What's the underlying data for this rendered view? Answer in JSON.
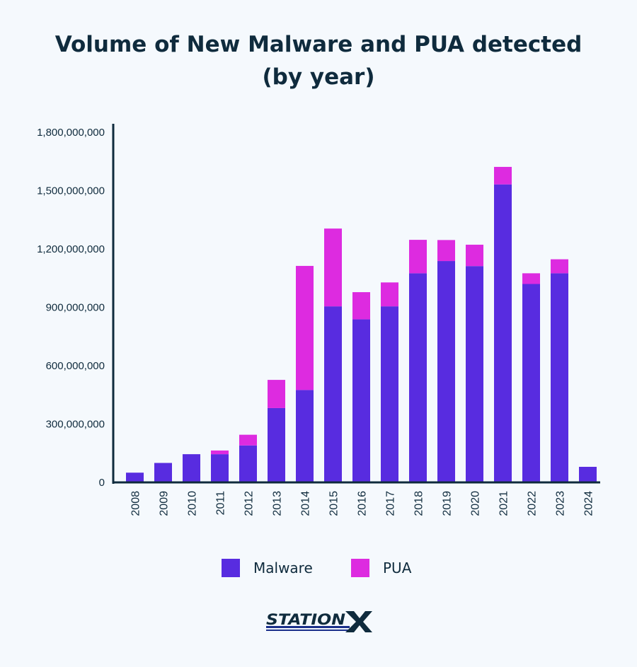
{
  "title_line1": "Volume of New Malware and PUA detected",
  "title_line2": "(by year)",
  "brand": "STATIONX",
  "colors": {
    "malware": "#582ce0",
    "pua": "#dd2be0",
    "axis": "#0f2b3d",
    "background": "#f5f9fd"
  },
  "chart_data": {
    "type": "bar",
    "stacked": true,
    "categories": [
      "2008",
      "2009",
      "2010",
      "2011",
      "2012",
      "2013",
      "2014",
      "2015",
      "2016",
      "2017",
      "2018",
      "2019",
      "2020",
      "2021",
      "2022",
      "2023",
      "2024"
    ],
    "series": [
      {
        "name": "Malware",
        "values": [
          50000000,
          100000000,
          145000000,
          145000000,
          190000000,
          382000000,
          475000000,
          905000000,
          838000000,
          905000000,
          1075000000,
          1138000000,
          1112000000,
          1532000000,
          1020000000,
          1075000000,
          80000000
        ]
      },
      {
        "name": "PUA",
        "values": [
          0,
          0,
          0,
          19000000,
          55000000,
          145000000,
          638000000,
          400000000,
          140000000,
          123000000,
          172000000,
          108000000,
          110000000,
          90000000,
          55000000,
          72000000,
          0
        ]
      }
    ],
    "yticks": [
      0,
      300000000,
      600000000,
      900000000,
      1200000000,
      1500000000,
      1800000000
    ],
    "ytick_labels": [
      "0",
      "300,000,000",
      "600,000,000",
      "900,000,000",
      "1,200,000,000",
      "1,500,000,000",
      "1,800,000,000"
    ],
    "ylim": [
      0,
      1800000000
    ],
    "grid": false,
    "legend_position": "bottom-center",
    "xtick_rotation": "vertical"
  }
}
